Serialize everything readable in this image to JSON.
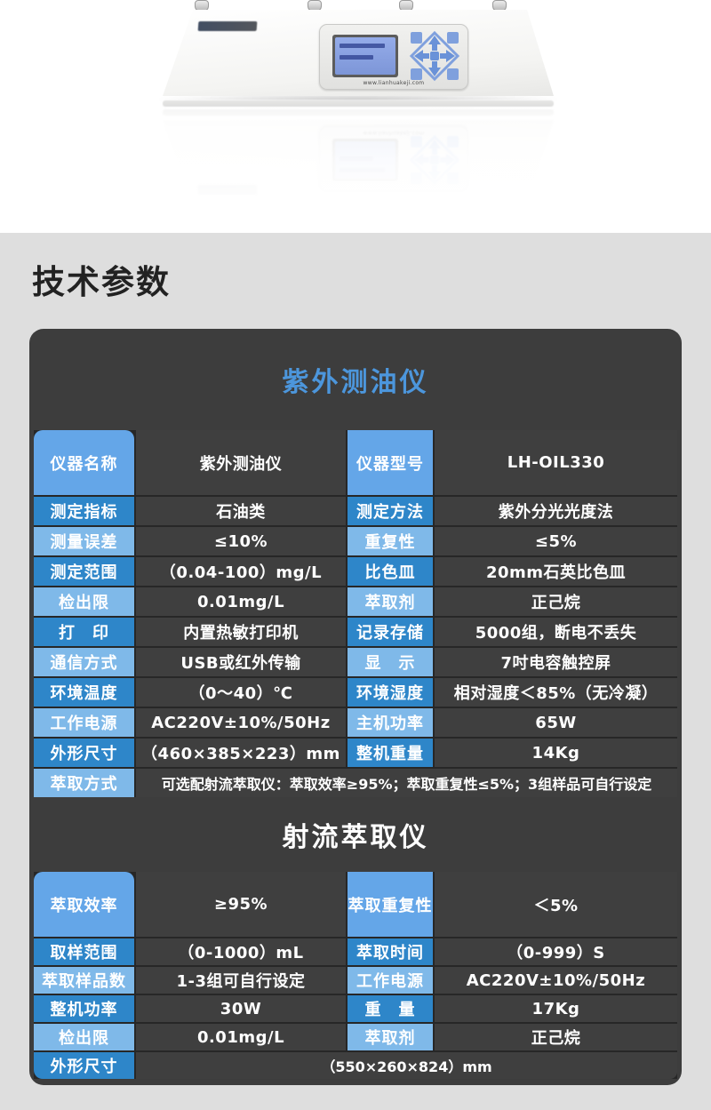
{
  "section": {
    "title": "技术参数"
  },
  "hero": {
    "device_website": "www.lianhuakeji.com"
  },
  "colors": {
    "section_bg": "#dedede",
    "panel_bg": "#3d3d3d",
    "label_dark_blue": "#2e86c9",
    "label_light_blue": "#7fb9e9",
    "label_header_blue": "#64a6e8",
    "panel_title_blue": "#4c96dc",
    "lcd_blue": "#8aa2e2"
  },
  "tables": [
    {
      "title": "紫外测油仪",
      "title_style": "blue",
      "rows": [
        {
          "header": true,
          "shade": "medium",
          "cells": [
            {
              "label": "仪器名称",
              "value": "紫外测油仪"
            },
            {
              "label": "仪器型号",
              "value": "LH-OIL330"
            }
          ]
        },
        {
          "shade": "dark",
          "cells": [
            {
              "label": "测定指标",
              "value": "石油类"
            },
            {
              "label": "测定方法",
              "value": "紫外分光光度法"
            }
          ]
        },
        {
          "shade": "light",
          "cells": [
            {
              "label": "测量误差",
              "value": "≤10%"
            },
            {
              "label": "重复性",
              "value": "≤5%"
            }
          ]
        },
        {
          "shade": "dark",
          "cells": [
            {
              "label": "测定范围",
              "value": "（0.04-100）mg/L"
            },
            {
              "label": "比色皿",
              "value": "20mm石英比色皿"
            }
          ]
        },
        {
          "shade": "light",
          "cells": [
            {
              "label": "检出限",
              "value": "0.01mg/L"
            },
            {
              "label": "萃取剂",
              "value": "正己烷"
            }
          ]
        },
        {
          "shade": "dark",
          "cells": [
            {
              "label": "打　印",
              "value": "内置热敏打印机"
            },
            {
              "label": "记录存储",
              "value": "5000组，断电不丢失"
            }
          ]
        },
        {
          "shade": "light",
          "cells": [
            {
              "label": "通信方式",
              "value": "USB或红外传输"
            },
            {
              "label": "显　示",
              "value": "7吋电容触控屏"
            }
          ]
        },
        {
          "shade": "dark",
          "cells": [
            {
              "label": "环境温度",
              "value": "（0～40）℃"
            },
            {
              "label": "环境湿度",
              "value": "相对湿度＜85%（无冷凝）"
            }
          ]
        },
        {
          "shade": "light",
          "cells": [
            {
              "label": "工作电源",
              "value": "AC220V±10%/50Hz"
            },
            {
              "label": "主机功率",
              "value": "65W"
            }
          ]
        },
        {
          "shade": "dark",
          "cells": [
            {
              "label": "外形尺寸",
              "value": "（460×385×223）mm"
            },
            {
              "label": "整机重量",
              "value": "14Kg"
            }
          ]
        },
        {
          "shade": "light",
          "cells": [
            {
              "label": "萃取方式",
              "value": "可选配射流萃取仪：萃取效率≥95%；萃取重复性≤5%；3组样品可自行设定",
              "span": true
            }
          ]
        }
      ]
    },
    {
      "title": "射流萃取仪",
      "title_style": "white",
      "rows": [
        {
          "header": true,
          "shade": "medium",
          "cells": [
            {
              "label": "萃取效率",
              "value": "≥95%"
            },
            {
              "label": "萃取重复性",
              "value": "＜5%"
            }
          ]
        },
        {
          "shade": "dark",
          "cells": [
            {
              "label": "取样范围",
              "value": "（0-1000）mL"
            },
            {
              "label": "萃取时间",
              "value": "（0-999）S"
            }
          ]
        },
        {
          "shade": "light",
          "cells": [
            {
              "label": "萃取样品数",
              "value": "1-3组可自行设定"
            },
            {
              "label": "工作电源",
              "value": "AC220V±10%/50Hz"
            }
          ]
        },
        {
          "shade": "dark",
          "cells": [
            {
              "label": "整机功率",
              "value": "30W"
            },
            {
              "label": "重　量",
              "value": "17Kg"
            }
          ]
        },
        {
          "shade": "light",
          "cells": [
            {
              "label": "检出限",
              "value": "0.01mg/L"
            },
            {
              "label": "萃取剂",
              "value": "正己烷"
            }
          ]
        },
        {
          "shade": "dark",
          "last": true,
          "cells": [
            {
              "label": "外形尺寸",
              "value": "（550×260×824）mm",
              "span": true
            }
          ]
        }
      ]
    }
  ]
}
